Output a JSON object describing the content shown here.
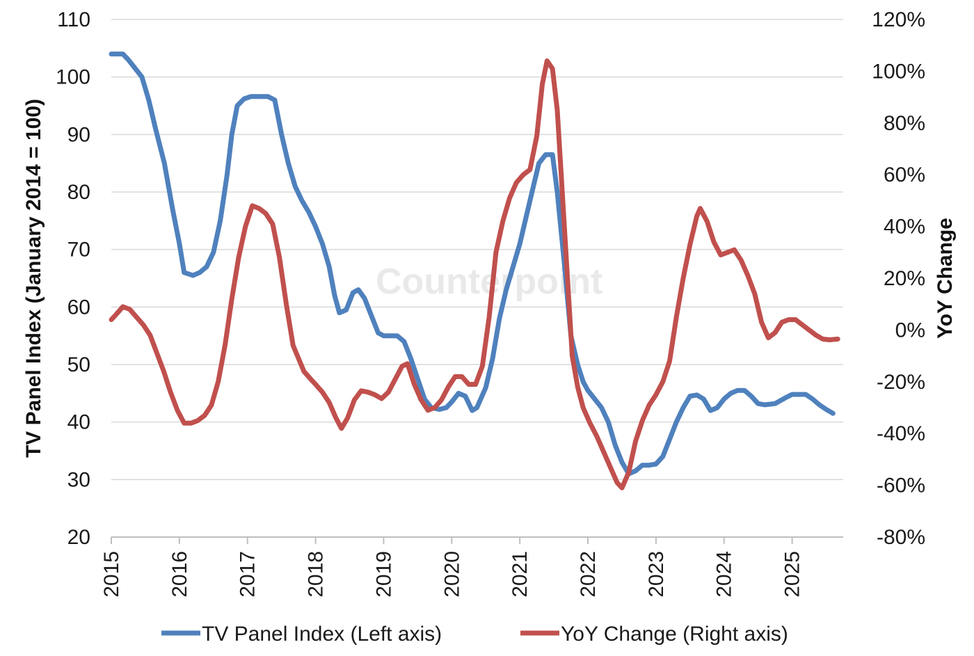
{
  "watermark": "Counterpoint",
  "legend_position": "bottom",
  "chart_data": {
    "type": "line",
    "title": "",
    "x_range": [
      2015.0,
      2025.75
    ],
    "xticks": [
      "2015",
      "2016",
      "2017",
      "2018",
      "2019",
      "2020",
      "2021",
      "2022",
      "2023",
      "2024",
      "2025"
    ],
    "y_left": {
      "label": "TV Panel Index (January 2014 = 100)",
      "range": [
        20,
        110
      ],
      "ticks": [
        "20",
        "30",
        "40",
        "50",
        "60",
        "70",
        "80",
        "90",
        "100",
        "110"
      ]
    },
    "y_right": {
      "label": "YoY Change",
      "range": [
        -80,
        120
      ],
      "ticks": [
        "-80%",
        "-60%",
        "-40%",
        "-20%",
        "0%",
        "20%",
        "40%",
        "60%",
        "80%",
        "100%",
        "120%"
      ]
    },
    "grid": "horizontal",
    "series": [
      {
        "name": "TV Panel Index (Left axis)",
        "axis": "left",
        "color": "#4f81bd",
        "points": [
          [
            2015.0,
            104
          ],
          [
            2015.17,
            104
          ],
          [
            2015.25,
            103
          ],
          [
            2015.35,
            101.5
          ],
          [
            2015.45,
            100
          ],
          [
            2015.55,
            96
          ],
          [
            2015.65,
            91
          ],
          [
            2015.78,
            85
          ],
          [
            2015.9,
            77
          ],
          [
            2016.0,
            71
          ],
          [
            2016.07,
            66
          ],
          [
            2016.2,
            65.5
          ],
          [
            2016.3,
            66
          ],
          [
            2016.4,
            67
          ],
          [
            2016.5,
            69.5
          ],
          [
            2016.6,
            75
          ],
          [
            2016.7,
            83
          ],
          [
            2016.77,
            90
          ],
          [
            2016.85,
            95
          ],
          [
            2016.95,
            96.2
          ],
          [
            2017.05,
            96.6
          ],
          [
            2017.3,
            96.6
          ],
          [
            2017.4,
            96
          ],
          [
            2017.5,
            90
          ],
          [
            2017.6,
            85
          ],
          [
            2017.7,
            81
          ],
          [
            2017.8,
            78.5
          ],
          [
            2017.9,
            76.5
          ],
          [
            2018.0,
            74
          ],
          [
            2018.1,
            71
          ],
          [
            2018.2,
            67
          ],
          [
            2018.28,
            62
          ],
          [
            2018.35,
            59
          ],
          [
            2018.45,
            59.5
          ],
          [
            2018.55,
            62.5
          ],
          [
            2018.63,
            63
          ],
          [
            2018.72,
            61.5
          ],
          [
            2018.82,
            58.5
          ],
          [
            2018.92,
            55.5
          ],
          [
            2019.0,
            55
          ],
          [
            2019.2,
            55
          ],
          [
            2019.3,
            54
          ],
          [
            2019.4,
            51
          ],
          [
            2019.5,
            47.5
          ],
          [
            2019.6,
            44
          ],
          [
            2019.7,
            42.5
          ],
          [
            2019.82,
            42.2
          ],
          [
            2019.92,
            42.5
          ],
          [
            2020.0,
            43.5
          ],
          [
            2020.1,
            45
          ],
          [
            2020.2,
            44.5
          ],
          [
            2020.3,
            42
          ],
          [
            2020.37,
            42.5
          ],
          [
            2020.5,
            46
          ],
          [
            2020.6,
            51
          ],
          [
            2020.7,
            58
          ],
          [
            2020.8,
            63
          ],
          [
            2020.9,
            67
          ],
          [
            2021.0,
            71
          ],
          [
            2021.1,
            76
          ],
          [
            2021.2,
            81
          ],
          [
            2021.28,
            85
          ],
          [
            2021.38,
            86.5
          ],
          [
            2021.48,
            86.5
          ],
          [
            2021.55,
            80
          ],
          [
            2021.65,
            68
          ],
          [
            2021.75,
            55
          ],
          [
            2021.85,
            50
          ],
          [
            2021.93,
            47
          ],
          [
            2022.0,
            45.5
          ],
          [
            2022.1,
            44
          ],
          [
            2022.2,
            42.5
          ],
          [
            2022.3,
            40
          ],
          [
            2022.4,
            36
          ],
          [
            2022.5,
            33
          ],
          [
            2022.6,
            31
          ],
          [
            2022.7,
            31.5
          ],
          [
            2022.8,
            32.5
          ],
          [
            2022.9,
            32.5
          ],
          [
            2023.0,
            32.7
          ],
          [
            2023.1,
            34
          ],
          [
            2023.2,
            37
          ],
          [
            2023.3,
            40
          ],
          [
            2023.4,
            42.5
          ],
          [
            2023.5,
            44.5
          ],
          [
            2023.6,
            44.7
          ],
          [
            2023.7,
            44
          ],
          [
            2023.8,
            42
          ],
          [
            2023.9,
            42.5
          ],
          [
            2024.0,
            44
          ],
          [
            2024.1,
            45
          ],
          [
            2024.2,
            45.5
          ],
          [
            2024.3,
            45.5
          ],
          [
            2024.4,
            44.5
          ],
          [
            2024.5,
            43.2
          ],
          [
            2024.6,
            43
          ],
          [
            2024.75,
            43.2
          ],
          [
            2024.9,
            44.2
          ],
          [
            2025.0,
            44.8
          ],
          [
            2025.2,
            44.8
          ],
          [
            2025.3,
            44
          ],
          [
            2025.4,
            43
          ],
          [
            2025.5,
            42.2
          ],
          [
            2025.6,
            41.5
          ]
        ]
      },
      {
        "name": "YoY Change (Right axis)",
        "axis": "right",
        "color": "#c0504d",
        "points": [
          [
            2015.0,
            4
          ],
          [
            2015.07,
            6
          ],
          [
            2015.17,
            9
          ],
          [
            2015.27,
            8
          ],
          [
            2015.37,
            5
          ],
          [
            2015.47,
            2
          ],
          [
            2015.57,
            -2
          ],
          [
            2015.67,
            -9
          ],
          [
            2015.77,
            -16
          ],
          [
            2015.87,
            -24
          ],
          [
            2015.97,
            -31
          ],
          [
            2016.07,
            -36
          ],
          [
            2016.17,
            -36
          ],
          [
            2016.27,
            -35
          ],
          [
            2016.37,
            -33
          ],
          [
            2016.47,
            -29
          ],
          [
            2016.57,
            -20
          ],
          [
            2016.67,
            -6
          ],
          [
            2016.77,
            12
          ],
          [
            2016.87,
            28
          ],
          [
            2016.97,
            40
          ],
          [
            2017.07,
            48
          ],
          [
            2017.17,
            47
          ],
          [
            2017.27,
            45
          ],
          [
            2017.37,
            41
          ],
          [
            2017.47,
            28
          ],
          [
            2017.57,
            10
          ],
          [
            2017.67,
            -6
          ],
          [
            2017.75,
            -11
          ],
          [
            2017.83,
            -16
          ],
          [
            2017.93,
            -19
          ],
          [
            2018.0,
            -21
          ],
          [
            2018.1,
            -24
          ],
          [
            2018.2,
            -28
          ],
          [
            2018.3,
            -34
          ],
          [
            2018.38,
            -38
          ],
          [
            2018.47,
            -34
          ],
          [
            2018.57,
            -27
          ],
          [
            2018.67,
            -23.5
          ],
          [
            2018.77,
            -24
          ],
          [
            2018.87,
            -25
          ],
          [
            2018.97,
            -26.5
          ],
          [
            2019.07,
            -24
          ],
          [
            2019.17,
            -19
          ],
          [
            2019.27,
            -14
          ],
          [
            2019.35,
            -13
          ],
          [
            2019.45,
            -21
          ],
          [
            2019.55,
            -27
          ],
          [
            2019.65,
            -31
          ],
          [
            2019.75,
            -30
          ],
          [
            2019.85,
            -27
          ],
          [
            2019.95,
            -22
          ],
          [
            2020.05,
            -18
          ],
          [
            2020.15,
            -18
          ],
          [
            2020.25,
            -21
          ],
          [
            2020.35,
            -21
          ],
          [
            2020.45,
            -14
          ],
          [
            2020.55,
            5
          ],
          [
            2020.65,
            30
          ],
          [
            2020.75,
            42
          ],
          [
            2020.85,
            51
          ],
          [
            2020.95,
            57
          ],
          [
            2021.05,
            60
          ],
          [
            2021.15,
            62
          ],
          [
            2021.25,
            75
          ],
          [
            2021.33,
            95
          ],
          [
            2021.4,
            104
          ],
          [
            2021.48,
            101
          ],
          [
            2021.55,
            85
          ],
          [
            2021.62,
            55
          ],
          [
            2021.7,
            20
          ],
          [
            2021.77,
            -10
          ],
          [
            2021.85,
            -22
          ],
          [
            2021.93,
            -30
          ],
          [
            2022.03,
            -36
          ],
          [
            2022.13,
            -41
          ],
          [
            2022.23,
            -47
          ],
          [
            2022.33,
            -53
          ],
          [
            2022.43,
            -59
          ],
          [
            2022.5,
            -61
          ],
          [
            2022.6,
            -55
          ],
          [
            2022.7,
            -43
          ],
          [
            2022.8,
            -35
          ],
          [
            2022.9,
            -29
          ],
          [
            2023.0,
            -25
          ],
          [
            2023.1,
            -20
          ],
          [
            2023.2,
            -12
          ],
          [
            2023.3,
            5
          ],
          [
            2023.4,
            20
          ],
          [
            2023.5,
            33
          ],
          [
            2023.6,
            44
          ],
          [
            2023.65,
            47
          ],
          [
            2023.75,
            42
          ],
          [
            2023.85,
            34
          ],
          [
            2023.95,
            29
          ],
          [
            2024.05,
            30
          ],
          [
            2024.15,
            31
          ],
          [
            2024.25,
            27
          ],
          [
            2024.35,
            21
          ],
          [
            2024.45,
            14
          ],
          [
            2024.55,
            3
          ],
          [
            2024.65,
            -3
          ],
          [
            2024.75,
            -1
          ],
          [
            2024.85,
            3
          ],
          [
            2024.95,
            4
          ],
          [
            2025.05,
            4
          ],
          [
            2025.15,
            2
          ],
          [
            2025.25,
            0
          ],
          [
            2025.35,
            -2
          ],
          [
            2025.45,
            -3.5
          ],
          [
            2025.55,
            -3.8
          ],
          [
            2025.67,
            -3.5
          ]
        ]
      }
    ]
  }
}
